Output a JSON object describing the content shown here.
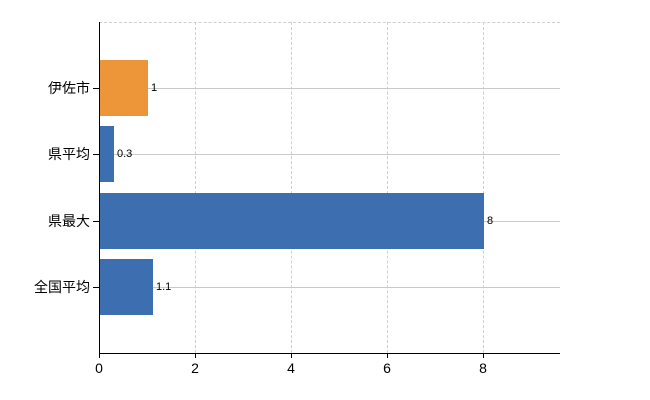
{
  "chart_data": {
    "type": "bar",
    "orientation": "horizontal",
    "title": "",
    "xlabel": "",
    "ylabel": "",
    "categories": [
      "伊佐市",
      "県平均",
      "県最大",
      "全国平均"
    ],
    "values": [
      1,
      0.3,
      8,
      1.1
    ],
    "value_labels": [
      "1",
      "0.3",
      "8",
      "1.1"
    ],
    "bar_colors": [
      "#ED9539",
      "#3D6EB0",
      "#3D6EB0",
      "#3D6EB0"
    ],
    "xlim": [
      0,
      9.6
    ],
    "xticks": [
      0,
      2,
      4,
      6,
      8
    ],
    "grid": true,
    "legend": false
  },
  "colors": {
    "highlight_bar": "#ED9539",
    "default_bar": "#3D6EB0",
    "vgrid": "#CFCFCF",
    "hgrid": "#C9C9C9",
    "axis": "#000000",
    "background": "#FFFFFF",
    "text": "#000000"
  }
}
